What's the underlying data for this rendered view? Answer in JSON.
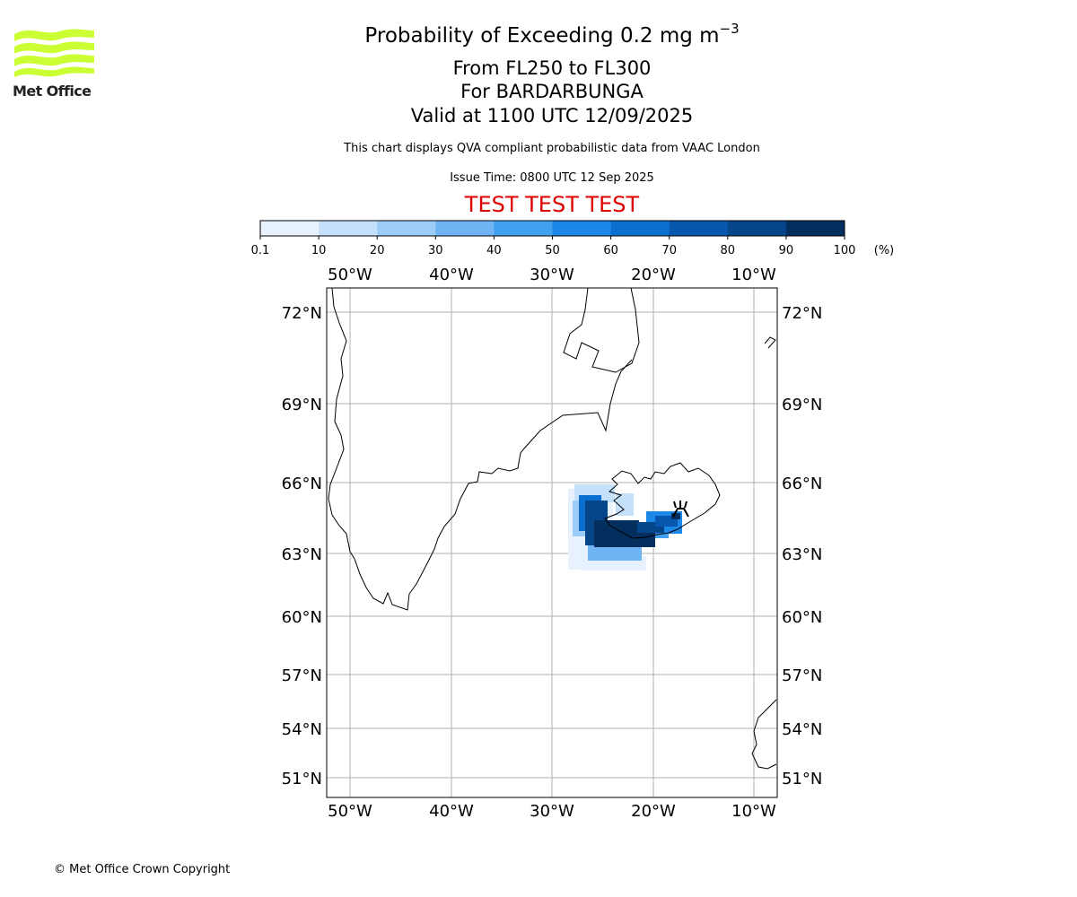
{
  "header": {
    "title_prefix": "Probability of Exceeding 0.2 mg m",
    "title_exp": "−3",
    "level_range": "From FL250 to FL300",
    "volcano": "For BARDARBUNGA",
    "valid_time": "Valid at 1100 UTC 12/09/2025",
    "subtitle": "This chart displays QVA compliant probabilistic data from VAAC London",
    "issue_time": "Issue Time: 0800 UTC 12 Sep 2025",
    "test_banner": "TEST TEST TEST"
  },
  "logo": {
    "text": "Met Office",
    "color": "#ccff33"
  },
  "colorbar": {
    "ticks": [
      "0.1",
      "10",
      "20",
      "30",
      "40",
      "50",
      "60",
      "70",
      "80",
      "90",
      "100"
    ],
    "unit": "(%)",
    "colors": [
      "#e8f2fe",
      "#c4e0fb",
      "#9ccdf8",
      "#6fb5f4",
      "#42a0f0",
      "#1b87e8",
      "#0b6fd0",
      "#0757ae",
      "#05468a",
      "#032e5e"
    ]
  },
  "map": {
    "lon_labels": [
      "50°W",
      "40°W",
      "30°W",
      "20°W",
      "10°W"
    ],
    "lat_labels": [
      "72°N",
      "69°N",
      "66°N",
      "63°N",
      "60°N",
      "57°N",
      "54°N",
      "51°N"
    ],
    "gridline_color": "#b0b0b0",
    "coast_color": "#000000",
    "volcano_marker": "volcano-icon"
  },
  "footer": {
    "copyright": "© Met Office Crown Copyright"
  }
}
